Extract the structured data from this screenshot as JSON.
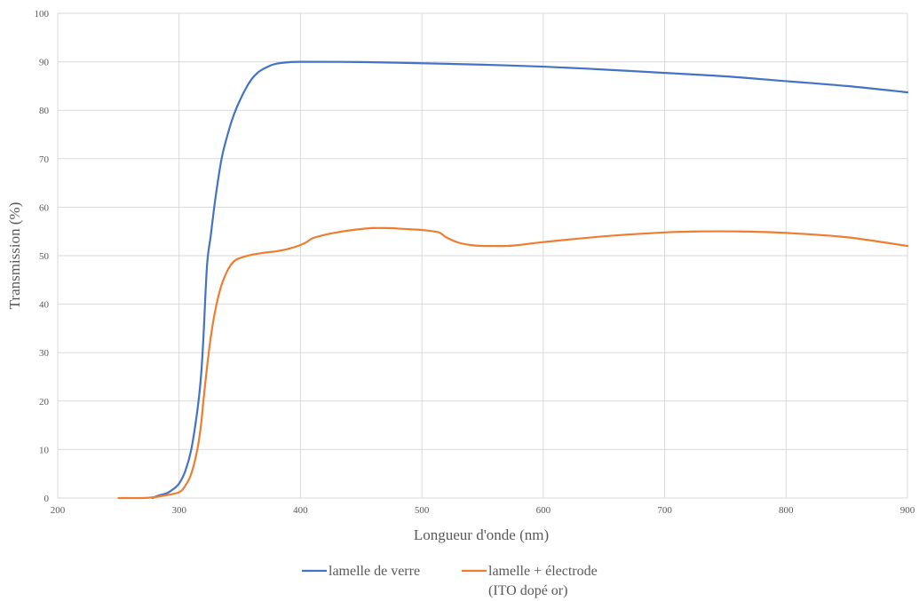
{
  "chart_data": {
    "type": "line",
    "xlabel": "Longueur d'onde (nm)",
    "ylabel": "Transmission (%)",
    "xlim": [
      200,
      900
    ],
    "ylim": [
      0,
      100
    ],
    "x_ticks": [
      200,
      300,
      400,
      500,
      600,
      700,
      800,
      900
    ],
    "y_ticks": [
      0,
      10,
      20,
      30,
      40,
      50,
      60,
      70,
      80,
      90,
      100
    ],
    "grid": true,
    "legend_position": "bottom",
    "series": [
      {
        "name": "lamelle de verre",
        "color": "#4472C4",
        "points": [
          [
            278,
            0
          ],
          [
            283,
            0.5
          ],
          [
            290,
            1
          ],
          [
            295,
            1.8
          ],
          [
            300,
            3
          ],
          [
            305,
            5.5
          ],
          [
            310,
            10
          ],
          [
            315,
            18
          ],
          [
            318,
            25
          ],
          [
            320,
            33
          ],
          [
            323,
            48
          ],
          [
            326,
            54
          ],
          [
            330,
            62
          ],
          [
            335,
            70
          ],
          [
            340,
            75
          ],
          [
            345,
            79
          ],
          [
            350,
            82
          ],
          [
            355,
            84.5
          ],
          [
            360,
            86.5
          ],
          [
            365,
            87.8
          ],
          [
            370,
            88.6
          ],
          [
            375,
            89.2
          ],
          [
            380,
            89.6
          ],
          [
            390,
            89.9
          ],
          [
            400,
            90
          ],
          [
            450,
            89.95
          ],
          [
            500,
            89.7
          ],
          [
            550,
            89.4
          ],
          [
            600,
            89
          ],
          [
            650,
            88.4
          ],
          [
            700,
            87.7
          ],
          [
            750,
            87
          ],
          [
            800,
            86
          ],
          [
            850,
            85
          ],
          [
            900,
            83.7
          ]
        ]
      },
      {
        "name": "lamelle + électrode\n(ITO dopé or)",
        "color": "#ED7D31",
        "points": [
          [
            250,
            0
          ],
          [
            270,
            0
          ],
          [
            280,
            0.2
          ],
          [
            290,
            0.6
          ],
          [
            300,
            1.2
          ],
          [
            305,
            2.5
          ],
          [
            310,
            5
          ],
          [
            315,
            10
          ],
          [
            318,
            15
          ],
          [
            320,
            20
          ],
          [
            323,
            27
          ],
          [
            326,
            33
          ],
          [
            330,
            39
          ],
          [
            335,
            44
          ],
          [
            340,
            47
          ],
          [
            345,
            48.8
          ],
          [
            350,
            49.5
          ],
          [
            360,
            50.2
          ],
          [
            370,
            50.6
          ],
          [
            380,
            50.9
          ],
          [
            390,
            51.4
          ],
          [
            400,
            52.2
          ],
          [
            405,
            52.8
          ],
          [
            410,
            53.6
          ],
          [
            420,
            54.3
          ],
          [
            430,
            54.8
          ],
          [
            440,
            55.2
          ],
          [
            450,
            55.5
          ],
          [
            460,
            55.7
          ],
          [
            470,
            55.7
          ],
          [
            480,
            55.6
          ],
          [
            490,
            55.45
          ],
          [
            500,
            55.3
          ],
          [
            510,
            55
          ],
          [
            515,
            54.7
          ],
          [
            520,
            53.8
          ],
          [
            530,
            52.7
          ],
          [
            540,
            52.2
          ],
          [
            550,
            52
          ],
          [
            560,
            52
          ],
          [
            570,
            52
          ],
          [
            580,
            52.2
          ],
          [
            600,
            52.8
          ],
          [
            650,
            54
          ],
          [
            700,
            54.8
          ],
          [
            730,
            55
          ],
          [
            760,
            55
          ],
          [
            800,
            54.7
          ],
          [
            850,
            53.8
          ],
          [
            900,
            52
          ]
        ]
      }
    ]
  }
}
